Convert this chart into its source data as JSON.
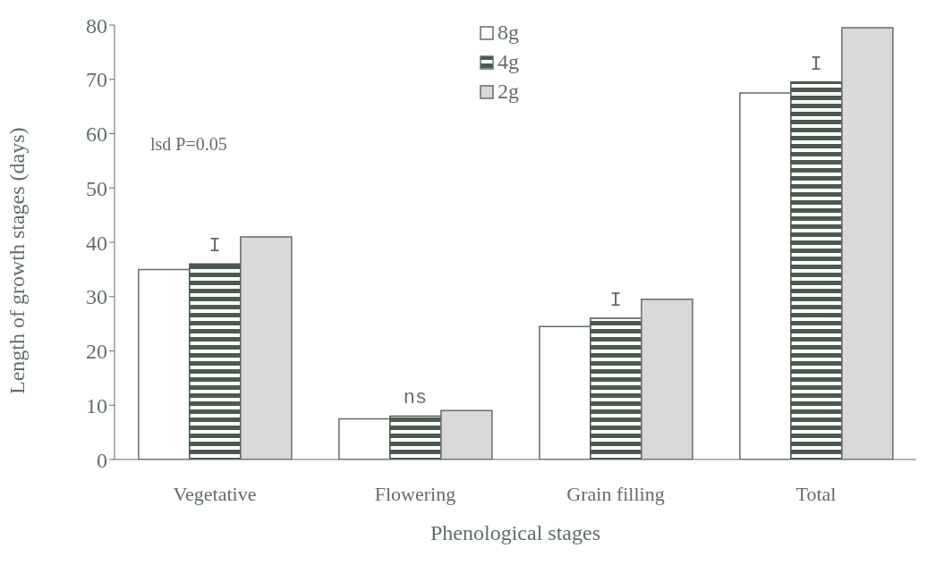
{
  "chart_data": {
    "type": "bar",
    "xlabel": "Phenological stages",
    "ylabel": "Length of growth stages (days)",
    "categories": [
      "Vegetative",
      "Flowering",
      "Grain filling",
      "Total"
    ],
    "series": [
      {
        "name": "8g",
        "color": "#ffffff",
        "values": [
          35,
          7.5,
          24.5,
          67.5
        ]
      },
      {
        "name": "4g",
        "color": "#4a5a4e",
        "values": [
          36,
          8,
          26,
          69.5
        ]
      },
      {
        "name": "2g",
        "color": "#d9d9d9",
        "values": [
          41,
          9,
          29.5,
          79.5
        ]
      }
    ],
    "ylim": [
      0,
      80
    ],
    "yticks": [
      0,
      10,
      20,
      30,
      40,
      50,
      60,
      70,
      80
    ],
    "grid": false,
    "legend": "top",
    "annotations": [
      "lsd P=0.05",
      "I",
      "ns",
      "I",
      "I"
    ]
  }
}
